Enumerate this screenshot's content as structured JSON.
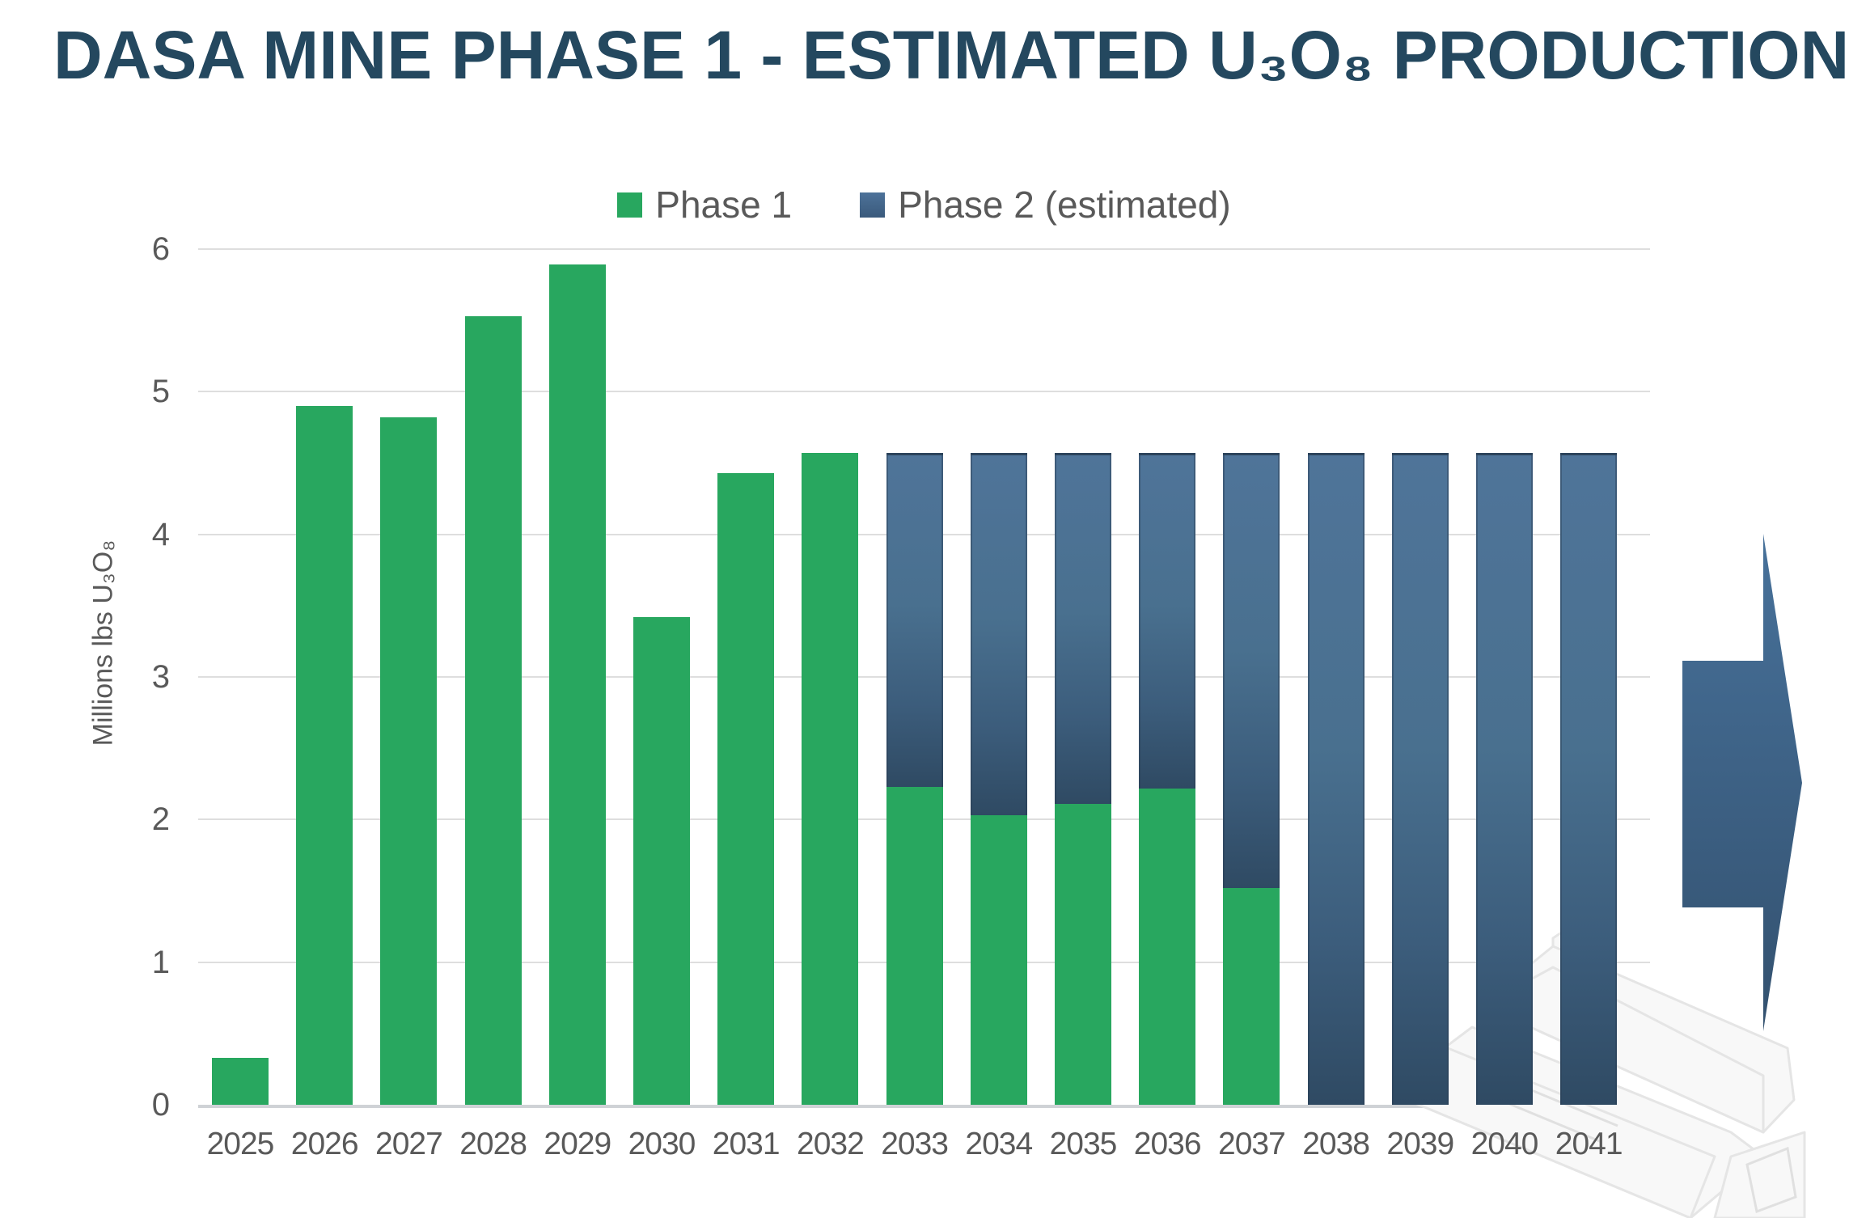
{
  "title": "DASA MINE PHASE 1 - ESTIMATED U₃O₈ PRODUCTION",
  "legend": [
    {
      "label": "Phase 1",
      "color": "#28a75f"
    },
    {
      "label": "Phase 2 (estimated)",
      "color": "#44688e"
    }
  ],
  "y_axis": {
    "label": "Millions lbs U₃O₈",
    "ticks": [
      "0",
      "1",
      "2",
      "3",
      "4",
      "5",
      "6"
    ]
  },
  "colors": {
    "title_text": "#24485f",
    "axis_text": "#595959",
    "gridline": "#dedede",
    "phase1_green": "#28a75f",
    "phase2_blue_top": "#4f7499",
    "phase2_blue_bottom": "#2f4a63",
    "arrow_blue": "#3f658a",
    "watermark_gray": "#e8e8e8"
  },
  "chart_data": {
    "type": "bar",
    "stacked": true,
    "title": "DASA MINE PHASE 1 - ESTIMATED U₃O₈ PRODUCTION",
    "xlabel": "",
    "ylabel": "Millions lbs U₃O₈",
    "ylim": [
      0,
      6
    ],
    "grid": true,
    "legend_position": "top",
    "categories": [
      "2025",
      "2026",
      "2027",
      "2028",
      "2029",
      "2030",
      "2031",
      "2032",
      "2033",
      "2034",
      "2035",
      "2036",
      "2037",
      "2038",
      "2039",
      "2040",
      "2041"
    ],
    "series": [
      {
        "name": "Phase 1",
        "color": "#28a75f",
        "values": [
          0.33,
          4.9,
          4.82,
          5.53,
          5.89,
          3.42,
          4.43,
          4.57,
          2.23,
          2.03,
          2.11,
          2.22,
          1.52,
          0,
          0,
          0,
          0
        ]
      },
      {
        "name": "Phase 2 (estimated)",
        "color": "#44688e",
        "values": [
          0,
          0,
          0,
          0,
          0,
          0,
          0,
          0,
          2.34,
          2.54,
          2.46,
          2.35,
          3.05,
          4.57,
          4.57,
          4.57,
          4.57
        ]
      }
    ]
  },
  "decorations": {
    "arrow": "right-pointing forward arrow",
    "watermark": "faint mining truck line art"
  }
}
